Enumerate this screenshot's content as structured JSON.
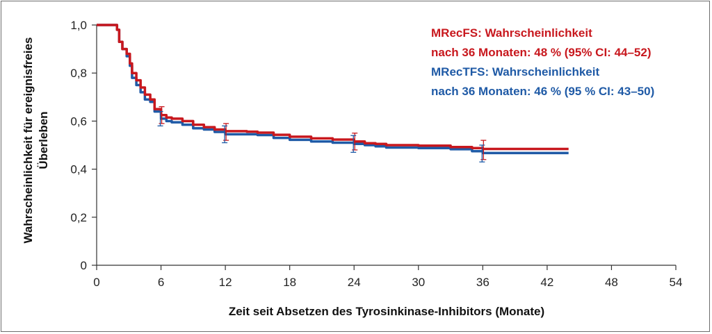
{
  "chart_data": {
    "type": "line",
    "xlabel": "Zeit seit Absetzen des Tyrosinkinase-Inhibitors (Monate)",
    "ylabel_lines": [
      "Wahrscheinlichkeit für ereignisfreies",
      "Überleben"
    ],
    "xlim": [
      0,
      54
    ],
    "ylim": [
      0,
      1
    ],
    "x_ticks": [
      0,
      6,
      12,
      18,
      24,
      30,
      36,
      42,
      48,
      54
    ],
    "x_tick_labels": [
      "0",
      "6",
      "12",
      "18",
      "24",
      "30",
      "36",
      "42",
      "48",
      "54"
    ],
    "y_ticks": [
      0,
      0.2,
      0.4,
      0.6,
      0.8,
      1.0
    ],
    "y_tick_labels": [
      "0",
      "0,2",
      "0,4",
      "0,6",
      "0,8",
      "1,0"
    ],
    "grid": false,
    "legend_position": "top-right",
    "series": [
      {
        "name": "MRecFS",
        "legend_lines": [
          "MRecFS: Wahrscheinlichkeit",
          "nach 36 Monaten: 48 % (95% CI: 44–52)"
        ],
        "color": "#c8181e",
        "points": [
          [
            0,
            1.0
          ],
          [
            1.6,
            1.0
          ],
          [
            1.9,
            0.98
          ],
          [
            2.1,
            0.93
          ],
          [
            2.4,
            0.9
          ],
          [
            2.8,
            0.88
          ],
          [
            3.1,
            0.84
          ],
          [
            3.3,
            0.8
          ],
          [
            3.7,
            0.77
          ],
          [
            4.1,
            0.74
          ],
          [
            4.5,
            0.71
          ],
          [
            5.0,
            0.69
          ],
          [
            5.4,
            0.65
          ],
          [
            6.0,
            0.625
          ],
          [
            6.5,
            0.615
          ],
          [
            7.0,
            0.61
          ],
          [
            8.0,
            0.6
          ],
          [
            9.0,
            0.585
          ],
          [
            10.0,
            0.575
          ],
          [
            11.0,
            0.565
          ],
          [
            12.0,
            0.558
          ],
          [
            14.0,
            0.556
          ],
          [
            15.0,
            0.552
          ],
          [
            16.5,
            0.543
          ],
          [
            18.0,
            0.535
          ],
          [
            20.0,
            0.528
          ],
          [
            22.0,
            0.523
          ],
          [
            24.0,
            0.515
          ],
          [
            25.0,
            0.508
          ],
          [
            26.0,
            0.505
          ],
          [
            27.0,
            0.5
          ],
          [
            30.0,
            0.498
          ],
          [
            33.0,
            0.492
          ],
          [
            35.0,
            0.488
          ],
          [
            36.0,
            0.484
          ],
          [
            40.0,
            0.484
          ],
          [
            44.0,
            0.484
          ]
        ],
        "error_bars": [
          {
            "x": 6,
            "y": 0.62,
            "low": 0.59,
            "high": 0.66
          },
          {
            "x": 12,
            "y": 0.555,
            "low": 0.52,
            "high": 0.59
          },
          {
            "x": 24,
            "y": 0.515,
            "low": 0.48,
            "high": 0.55
          },
          {
            "x": 36,
            "y": 0.48,
            "low": 0.44,
            "high": 0.52
          }
        ]
      },
      {
        "name": "MRecTFS",
        "legend_lines": [
          "MRecTFS: Wahrscheinlichkeit",
          "nach 36 Monaten: 46 % (95 % CI: 43–50)"
        ],
        "color": "#1f5aa6",
        "points": [
          [
            0,
            1.0
          ],
          [
            1.6,
            1.0
          ],
          [
            1.9,
            0.98
          ],
          [
            2.1,
            0.93
          ],
          [
            2.4,
            0.9
          ],
          [
            2.8,
            0.87
          ],
          [
            3.1,
            0.83
          ],
          [
            3.3,
            0.78
          ],
          [
            3.7,
            0.75
          ],
          [
            4.1,
            0.72
          ],
          [
            4.5,
            0.69
          ],
          [
            5.0,
            0.68
          ],
          [
            5.4,
            0.64
          ],
          [
            6.0,
            0.61
          ],
          [
            6.5,
            0.6
          ],
          [
            7.0,
            0.595
          ],
          [
            8.0,
            0.585
          ],
          [
            9.0,
            0.57
          ],
          [
            10.0,
            0.565
          ],
          [
            11.0,
            0.555
          ],
          [
            12.0,
            0.545
          ],
          [
            14.0,
            0.545
          ],
          [
            15.0,
            0.542
          ],
          [
            16.5,
            0.53
          ],
          [
            18.0,
            0.522
          ],
          [
            20.0,
            0.515
          ],
          [
            22.0,
            0.51
          ],
          [
            24.0,
            0.505
          ],
          [
            25.0,
            0.5
          ],
          [
            26.0,
            0.495
          ],
          [
            27.0,
            0.49
          ],
          [
            30.0,
            0.488
          ],
          [
            33.0,
            0.483
          ],
          [
            35.0,
            0.475
          ],
          [
            36.0,
            0.467
          ],
          [
            40.0,
            0.467
          ],
          [
            44.0,
            0.467
          ]
        ],
        "error_bars": [
          {
            "x": 6,
            "y": 0.61,
            "low": 0.58,
            "high": 0.64
          },
          {
            "x": 12,
            "y": 0.545,
            "low": 0.51,
            "high": 0.58
          },
          {
            "x": 24,
            "y": 0.505,
            "low": 0.47,
            "high": 0.54
          },
          {
            "x": 36,
            "y": 0.467,
            "low": 0.43,
            "high": 0.5
          }
        ]
      }
    ]
  }
}
